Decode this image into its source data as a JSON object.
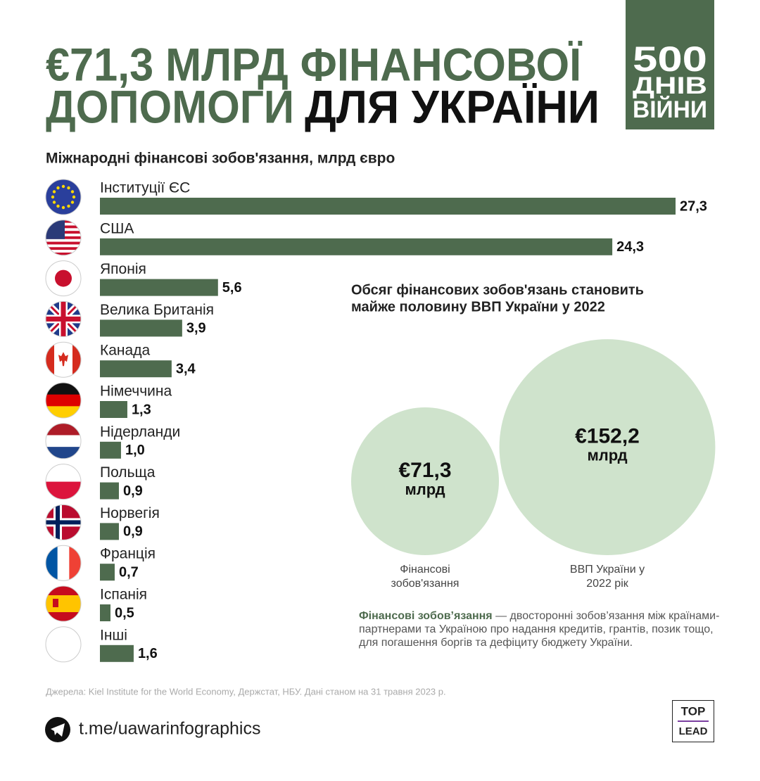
{
  "title": [
    "€71,3 МЛРД ФІНАНСОВОЇ",
    "ДОПОМОГИ",
    "ДЛЯ УКРАЇНИ"
  ],
  "badge": [
    "500",
    "ДНІВ",
    "ВІЙНИ"
  ],
  "chart_data": [
    {
      "type": "hbar",
      "title": "Міжнародні фінансові зобов'язання, млрд євро",
      "categories": [
        "Інституції ЄС",
        "США",
        "Японія",
        "Велика Британія",
        "Канада",
        "Німеччина",
        "Нідерланди",
        "Польща",
        "Норвегія",
        "Франція",
        "Іспанія",
        "Інші"
      ],
      "values": [
        27.3,
        24.3,
        5.6,
        3.9,
        3.4,
        1.3,
        1.0,
        0.9,
        0.9,
        0.7,
        0.5,
        1.6
      ],
      "value_labels": [
        "27,3",
        "24,3",
        "5,6",
        "3,9",
        "3,4",
        "1,3",
        "1,0",
        "0,9",
        "0,9",
        "0,7",
        "0,5",
        "1,6"
      ],
      "color": "#4e6b4e"
    },
    {
      "type": "bubble",
      "title": [
        "Обсяг фінансових зобов'язань становить",
        "майже половину ВВП України у 2022"
      ],
      "categories": [
        "Фінансові зобов'язання",
        "ВВП України у 2022 рік"
      ],
      "values": [
        71.3,
        152.2
      ],
      "value_labels": [
        "€71,3",
        "€152,2"
      ],
      "unit": "млрд",
      "color": "#cfe3cc"
    }
  ],
  "note": {
    "term": "Фінансові зобов’язання",
    "text": "— двосторонні зобов’язання між країнами-партнерами та Україною про надання кредитів, грантів, позик тощо, для погашення боргів та дефіциту бюджету України."
  },
  "source": "Джерела: Kiel Institute for the World Economy, Держстат, НБУ. Дані станом на 31 травня 2023 р.",
  "link": "t.me/uawarinfographics",
  "logo": [
    "TOP",
    "LEAD"
  ]
}
